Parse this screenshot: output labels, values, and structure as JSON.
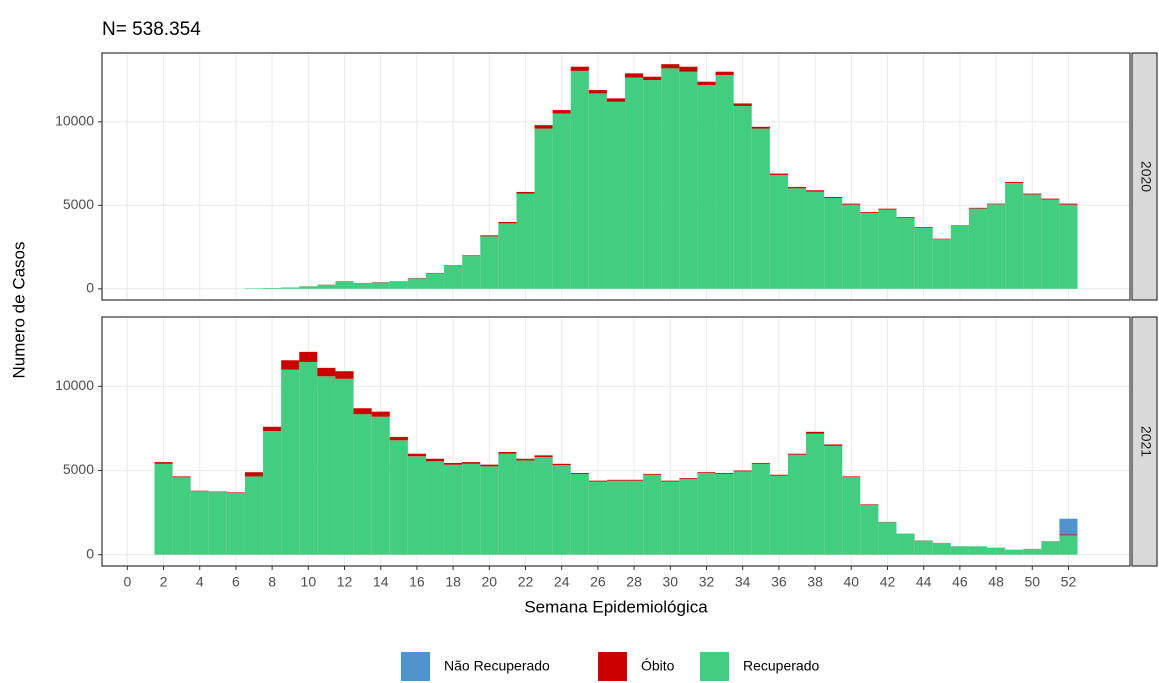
{
  "chart_data": {
    "type": "bar",
    "stacked": true,
    "title": "N= 538.354",
    "xlabel": "Semana Epidemiológica",
    "ylabel": "Numero de Casos",
    "x": [
      1,
      2,
      3,
      4,
      5,
      6,
      7,
      8,
      9,
      10,
      11,
      12,
      13,
      14,
      15,
      16,
      17,
      18,
      19,
      20,
      21,
      22,
      23,
      24,
      25,
      26,
      27,
      28,
      29,
      30,
      31,
      32,
      33,
      34,
      35,
      36,
      37,
      38,
      39,
      40,
      41,
      42,
      43,
      44,
      45,
      46,
      47,
      48,
      49,
      50,
      51,
      52
    ],
    "xlim": [
      -1.4,
      55.4
    ],
    "xticks": [
      0,
      2,
      4,
      6,
      8,
      10,
      12,
      14,
      16,
      18,
      20,
      22,
      24,
      26,
      28,
      30,
      32,
      34,
      36,
      38,
      40,
      42,
      44,
      46,
      48,
      50,
      52
    ],
    "ylim": [
      -670,
      14120
    ],
    "yticks": [
      0,
      5000,
      10000
    ],
    "grid": true,
    "legend": "bottom",
    "series": [
      {
        "name": "Não Recuperado",
        "color": "#4f94cd"
      },
      {
        "name": "Óbito",
        "color": "#cd0000"
      },
      {
        "name": "Recuperado",
        "color": "#43cd80"
      }
    ],
    "facets": [
      {
        "label": "2020",
        "values": [
          [
            0,
            0,
            0,
            0,
            0,
            0,
            0,
            0,
            0,
            0,
            0,
            0,
            0,
            0,
            0,
            0,
            0,
            0,
            0,
            0,
            0,
            0,
            0,
            0,
            0,
            0,
            0,
            0,
            0,
            0,
            0,
            0,
            0,
            0,
            0,
            0,
            0,
            0,
            0,
            0,
            0,
            0,
            0,
            0,
            0,
            0,
            0,
            0,
            0,
            0,
            0,
            0
          ],
          [
            0,
            0,
            0,
            0,
            0,
            0,
            0,
            0,
            0,
            5,
            10,
            20,
            15,
            15,
            15,
            20,
            25,
            30,
            40,
            60,
            80,
            100,
            200,
            200,
            250,
            200,
            200,
            250,
            200,
            250,
            300,
            200,
            200,
            150,
            100,
            80,
            80,
            80,
            60,
            60,
            50,
            50,
            40,
            40,
            30,
            30,
            40,
            40,
            60,
            50,
            50,
            60
          ],
          [
            0,
            0,
            0,
            0,
            0,
            0,
            30,
            50,
            80,
            145,
            240,
            430,
            335,
            385,
            435,
            630,
            925,
            1370,
            1960,
            3140,
            3920,
            5700,
            9600,
            10500,
            13050,
            11700,
            11200,
            12650,
            12500,
            13200,
            13000,
            12200,
            12800,
            10950,
            9600,
            6820,
            6020,
            5820,
            5440,
            5040,
            4550,
            4750,
            4260,
            3660,
            2970,
            3770,
            4810,
            5060,
            6340,
            5650,
            5350,
            5040
          ]
        ]
      },
      {
        "label": "2021",
        "values": [
          [
            0,
            0,
            0,
            0,
            0,
            0,
            0,
            0,
            0,
            0,
            0,
            0,
            0,
            0,
            0,
            0,
            0,
            0,
            0,
            0,
            0,
            0,
            0,
            0,
            0,
            0,
            0,
            0,
            0,
            0,
            0,
            0,
            0,
            0,
            0,
            0,
            0,
            0,
            0,
            0,
            0,
            0,
            0,
            0,
            0,
            0,
            0,
            0,
            0,
            0,
            0,
            940
          ],
          [
            0,
            100,
            50,
            30,
            30,
            40,
            250,
            250,
            550,
            600,
            500,
            450,
            350,
            300,
            200,
            150,
            150,
            100,
            100,
            100,
            100,
            100,
            100,
            80,
            60,
            50,
            50,
            50,
            50,
            50,
            50,
            50,
            50,
            50,
            50,
            50,
            60,
            100,
            80,
            40,
            30,
            20,
            10,
            10,
            5,
            5,
            0,
            5,
            0,
            0,
            10,
            50
          ],
          [
            0,
            5400,
            4600,
            3770,
            3720,
            3660,
            4650,
            7350,
            11000,
            11450,
            10600,
            10450,
            8350,
            8200,
            6800,
            5850,
            5550,
            5350,
            5400,
            5250,
            6000,
            5600,
            5800,
            5320,
            4790,
            4350,
            4400,
            4400,
            4750,
            4350,
            4500,
            4850,
            4800,
            4950,
            5400,
            4700,
            5940,
            7200,
            6470,
            4610,
            2970,
            1930,
            1240,
            840,
            695,
            495,
            500,
            415,
            300,
            350,
            790,
            1150
          ]
        ]
      }
    ]
  }
}
